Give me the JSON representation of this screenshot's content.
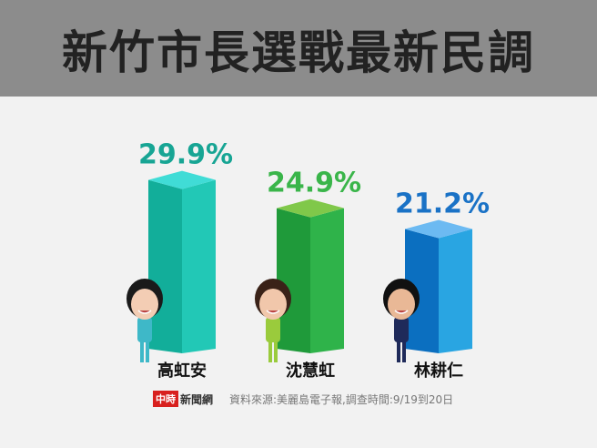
{
  "chart_data": {
    "type": "bar",
    "title": "新竹市長選戰最新民調",
    "categories": [
      "高虹安",
      "沈慧虹",
      "林耕仁"
    ],
    "values": [
      29.9,
      24.9,
      21.2
    ],
    "value_labels": [
      "29.9%",
      "24.9%",
      "21.2%"
    ],
    "colors": [
      {
        "label": "#17a594",
        "left": "#12ae9a",
        "right": "#22c8b6",
        "top": "#40dcd6"
      },
      {
        "label": "#3ab54a",
        "left": "#1f9a3a",
        "right": "#2fb34a",
        "top": "#80c84a"
      },
      {
        "label": "#1a72c6",
        "left": "#0b6fc0",
        "right": "#29a5e2",
        "top": "#6cbaf2"
      }
    ],
    "ylim": [
      0,
      32
    ],
    "grid": false
  },
  "footer": {
    "logo_red": "中時",
    "logo_text": "新聞網",
    "source": "資料來源:美麗島電子報,調查時間:9/19到20日"
  }
}
